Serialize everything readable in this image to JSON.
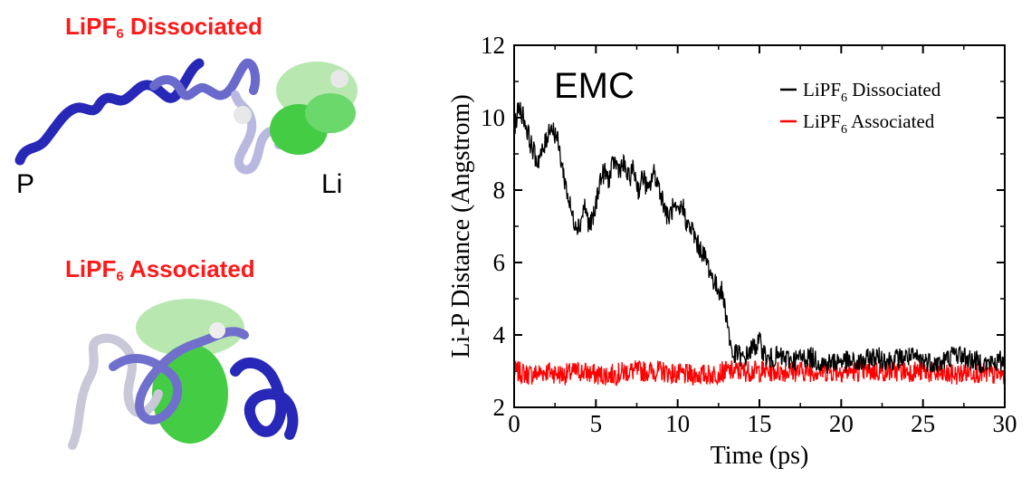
{
  "left_panel": {
    "dissociated_title": {
      "main": "LiPF",
      "sub": "6",
      "rest": " Dissociated"
    },
    "associated_title": {
      "main": "LiPF",
      "sub": "6",
      "rest": " Associated"
    },
    "label_p": "P",
    "label_li": "Li",
    "colors": {
      "title": "#ff1a1a",
      "dark_chain": "#2222bb",
      "mid_chain": "#6a6acc",
      "light_chain": "#b8b8e0",
      "solvent": "#44cc44",
      "light_solvent": "#b8e8b0"
    }
  },
  "chart_data": {
    "type": "line",
    "annotation": "EMC",
    "xlabel": "Time (ps)",
    "ylabel": "Li-P Distance (Angstrom)",
    "xlim": [
      0,
      30
    ],
    "ylim": [
      2,
      12
    ],
    "xticks": [
      "0",
      "5",
      "10",
      "15",
      "20",
      "25",
      "30"
    ],
    "yticks": [
      "2",
      "4",
      "6",
      "8",
      "10",
      "12"
    ],
    "legend_position": "top-right",
    "grid": false,
    "series": [
      {
        "name_main": "LiPF",
        "name_sub": "6",
        "name_rest": " Dissociated",
        "color": "#000000",
        "x": [
          0,
          0.3,
          0.6,
          1.0,
          1.4,
          1.8,
          2.2,
          2.6,
          3.0,
          3.3,
          3.6,
          4.0,
          4.3,
          4.6,
          4.9,
          5.2,
          5.5,
          5.8,
          6.1,
          6.4,
          6.7,
          7.0,
          7.3,
          7.6,
          7.9,
          8.2,
          8.5,
          8.8,
          9.1,
          9.4,
          9.7,
          10.0,
          10.3,
          10.6,
          10.9,
          11.2,
          11.5,
          11.8,
          12.1,
          12.4,
          12.7,
          13.0,
          13.2,
          13.4,
          13.7,
          14.0,
          14.5,
          15.0,
          15.5,
          16.0,
          17.0,
          18.0,
          19.0,
          20.0,
          21.0,
          22.0,
          23.0,
          24.0,
          25.0,
          26.0,
          27.0,
          28.0,
          29.0,
          30.0
        ],
        "y": [
          9.7,
          10.3,
          10.0,
          9.3,
          8.8,
          9.1,
          9.8,
          9.5,
          8.5,
          7.8,
          7.2,
          7.0,
          7.6,
          7.0,
          7.3,
          8.2,
          8.5,
          8.3,
          8.8,
          8.6,
          8.7,
          8.3,
          8.6,
          8.0,
          8.4,
          7.9,
          8.5,
          8.2,
          7.7,
          7.2,
          7.5,
          7.3,
          7.6,
          7.0,
          6.9,
          6.5,
          6.3,
          6.0,
          5.6,
          5.3,
          5.2,
          4.5,
          3.8,
          3.4,
          3.5,
          3.3,
          3.6,
          3.8,
          3.3,
          3.4,
          3.3,
          3.4,
          3.2,
          3.3,
          3.2,
          3.4,
          3.3,
          3.4,
          3.3,
          3.2,
          3.5,
          3.3,
          3.2,
          3.3
        ],
        "noise": 0.3
      },
      {
        "name_main": "LiPF",
        "name_sub": "6",
        "name_rest": " Associated",
        "color": "#ff0000",
        "x": [
          0,
          1,
          2,
          3,
          4,
          5,
          6,
          7,
          8,
          9,
          10,
          11,
          12,
          13,
          14,
          15,
          16,
          17,
          18,
          19,
          20,
          21,
          22,
          23,
          24,
          25,
          26,
          27,
          28,
          29,
          30
        ],
        "y": [
          3.0,
          2.9,
          3.0,
          2.9,
          3.0,
          2.9,
          2.9,
          3.0,
          3.0,
          3.0,
          2.9,
          2.9,
          2.9,
          3.0,
          3.0,
          3.0,
          3.0,
          3.0,
          3.0,
          3.0,
          3.0,
          3.0,
          3.0,
          3.0,
          3.0,
          3.0,
          2.9,
          2.9,
          3.0,
          2.9,
          2.9
        ],
        "noise": 0.3
      }
    ]
  }
}
